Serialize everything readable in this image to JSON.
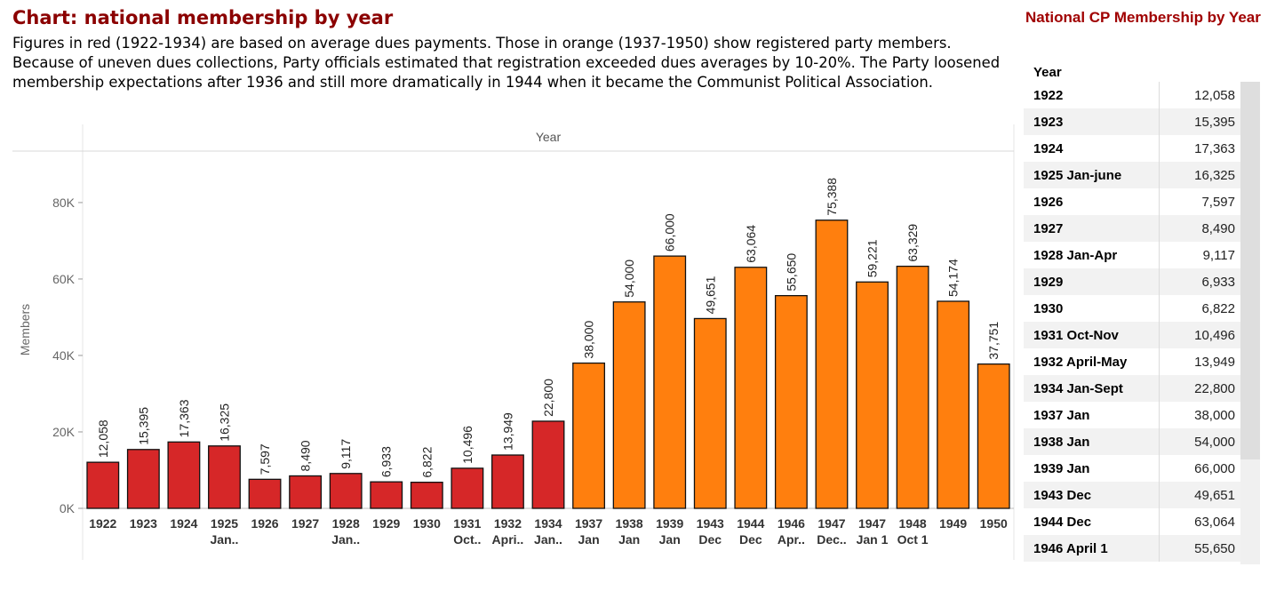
{
  "title": "Chart: national membership by year",
  "description": "Figures in red (1922-1934) are based on average dues payments. Those in orange (1937-1950) show registered party members. Because of uneven dues collections, Party officials estimated that registration exceeded dues averages by 10-20%. The Party loosened membership expectations after 1936 and still more dramatically in 1944 when it became the Communist Political Association.",
  "colors": {
    "dues": "#d62728",
    "registered": "#ff7f0e",
    "title": "#8b0000"
  },
  "chart_data": {
    "type": "bar",
    "column_header": "Year",
    "ylabel": "Members",
    "ylim": [
      0,
      93000
    ],
    "yticks": [
      0,
      20000,
      40000,
      60000,
      80000
    ],
    "ytick_labels": [
      "0K",
      "20K",
      "40K",
      "60K",
      "80K"
    ],
    "grid": false,
    "categories": [
      [
        "1922"
      ],
      [
        "1923"
      ],
      [
        "1924"
      ],
      [
        "1925",
        "Jan.."
      ],
      [
        "1926"
      ],
      [
        "1927"
      ],
      [
        "1928",
        "Jan.."
      ],
      [
        "1929"
      ],
      [
        "1930"
      ],
      [
        "1931",
        "Oct.."
      ],
      [
        "1932",
        "Apri.."
      ],
      [
        "1934",
        "Jan.."
      ],
      [
        "1937",
        "Jan"
      ],
      [
        "1938",
        "Jan"
      ],
      [
        "1939",
        "Jan"
      ],
      [
        "1943",
        "Dec"
      ],
      [
        "1944",
        "Dec"
      ],
      [
        "1946",
        "Apr.."
      ],
      [
        "1947",
        "Dec.."
      ],
      [
        "1947",
        "Jan 1"
      ],
      [
        "1948",
        "Oct 1"
      ],
      [
        "1949"
      ],
      [
        "1950"
      ]
    ],
    "values": [
      12058,
      15395,
      17363,
      16325,
      7597,
      8490,
      9117,
      6933,
      6822,
      10496,
      13949,
      22800,
      38000,
      54000,
      66000,
      49651,
      63064,
      55650,
      75388,
      59221,
      63329,
      54174,
      37751
    ],
    "value_labels": [
      "12,058",
      "15,395",
      "17,363",
      "16,325",
      "7,597",
      "8,490",
      "9,117",
      "6,933",
      "6,822",
      "10,496",
      "13,949",
      "22,800",
      "38,000",
      "54,000",
      "66,000",
      "49,651",
      "63,064",
      "55,650",
      "75,388",
      "59,221",
      "63,329",
      "54,174",
      "37,751"
    ],
    "bar_colors": [
      "dues",
      "dues",
      "dues",
      "dues",
      "dues",
      "dues",
      "dues",
      "dues",
      "dues",
      "dues",
      "dues",
      "dues",
      "registered",
      "registered",
      "registered",
      "registered",
      "registered",
      "registered",
      "registered",
      "registered",
      "registered",
      "registered",
      "registered"
    ]
  },
  "table": {
    "title": "National CP Membership by Year",
    "header": "Year",
    "rows": [
      {
        "year": "1922",
        "value": "12,058"
      },
      {
        "year": "1923",
        "value": "15,395"
      },
      {
        "year": "1924",
        "value": "17,363"
      },
      {
        "year": "1925 Jan-june",
        "value": "16,325"
      },
      {
        "year": "1926",
        "value": "7,597"
      },
      {
        "year": "1927",
        "value": "8,490"
      },
      {
        "year": "1928 Jan-Apr",
        "value": "9,117"
      },
      {
        "year": "1929",
        "value": "6,933"
      },
      {
        "year": "1930",
        "value": "6,822"
      },
      {
        "year": "1931 Oct-Nov",
        "value": "10,496"
      },
      {
        "year": "1932 April-May",
        "value": "13,949"
      },
      {
        "year": "1934 Jan-Sept",
        "value": "22,800"
      },
      {
        "year": "1937 Jan",
        "value": "38,000"
      },
      {
        "year": "1938 Jan",
        "value": "54,000"
      },
      {
        "year": "1939 Jan",
        "value": "66,000"
      },
      {
        "year": "1943 Dec",
        "value": "49,651"
      },
      {
        "year": "1944 Dec",
        "value": "63,064"
      },
      {
        "year": "1946 April 1",
        "value": "55,650"
      }
    ]
  }
}
